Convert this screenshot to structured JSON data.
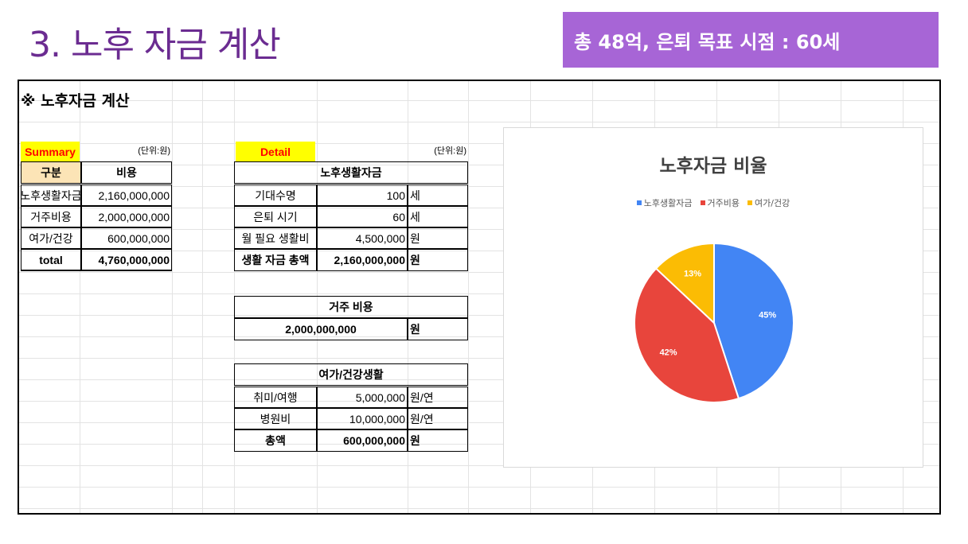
{
  "slide": {
    "title": "3. 노후 자금 계산",
    "banner": "총 48억, 은퇴 목표 시점 : 60세"
  },
  "sheet": {
    "title": "※ 노후자금 계산",
    "summary": {
      "label": "Summary",
      "unit": "(단위:원)",
      "col_category": "구분",
      "col_cost": "비용",
      "rows": [
        {
          "name": "노후생활자금",
          "value": "2,160,000,000"
        },
        {
          "name": "거주비용",
          "value": "2,000,000,000"
        },
        {
          "name": "여가/건강",
          "value": "600,000,000"
        }
      ],
      "total_label": "total",
      "total_value": "4,760,000,000"
    },
    "detail": {
      "label": "Detail",
      "unit": "(단위:원)",
      "living": {
        "header": "노후생활자금",
        "rows": [
          {
            "name": "기대수명",
            "value": "100",
            "unit": "세"
          },
          {
            "name": "은퇴 시기",
            "value": "60",
            "unit": "세"
          },
          {
            "name": "월 필요 생활비",
            "value": "4,500,000",
            "unit": "원"
          },
          {
            "name": "생활 자금 총액",
            "value": "2,160,000,000",
            "unit": "원"
          }
        ]
      },
      "housing": {
        "header": "거주 비용",
        "value": "2,000,000,000",
        "unit": "원"
      },
      "leisure": {
        "header": "여가/건강생활",
        "rows": [
          {
            "name": "취미/여행",
            "value": "5,000,000",
            "unit": "원/연"
          },
          {
            "name": "병원비",
            "value": "10,000,000",
            "unit": "원/연"
          },
          {
            "name": "총액",
            "value": "600,000,000",
            "unit": "원"
          }
        ]
      }
    }
  },
  "chart_data": {
    "type": "pie",
    "title": "노후자금 비율",
    "legend_position": "top",
    "categories": [
      "노후생활자금",
      "거주비용",
      "여가/건강"
    ],
    "values": [
      45,
      42,
      13
    ],
    "labels": [
      "45%",
      "42%",
      "13%"
    ],
    "colors": [
      "#4285f4",
      "#e8453c",
      "#fbbc04"
    ]
  }
}
